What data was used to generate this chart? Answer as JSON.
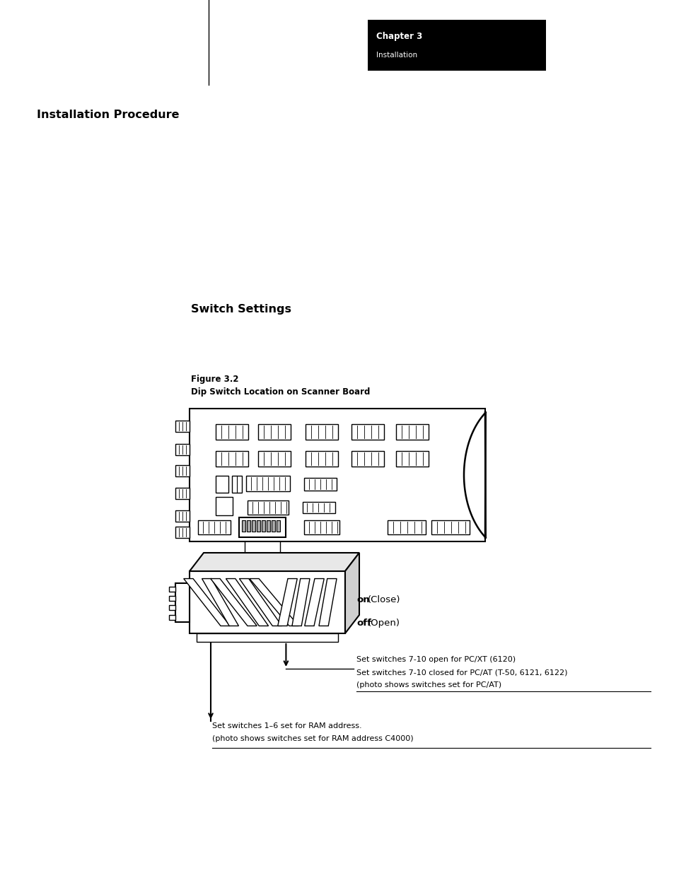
{
  "page_bg": "#ffffff",
  "chapter_box_color": "#000000",
  "chapter_title": "Chapter 3",
  "chapter_sub": "Installation",
  "section_title": "Installation Procedure",
  "subsection_title": "Switch Settings",
  "fig_label_line1": "Figure 3.2",
  "fig_label_line2": "Dip Switch Location on Scanner Board",
  "on_label": "on",
  "on_paren": "  (Close)",
  "off_label": "off",
  "off_paren": "  (Open)",
  "note_line1": "Set switches 7-10 open for PC/XT (6120)",
  "note_line2": "Set switches 7-10 closed for PC/AT (T-50, 6121, 6122)",
  "note_line3": "(photo shows switches set for PC/AT)",
  "note2_line1": "Set switches 1–6 set for RAM address.",
  "note2_line2": "(photo shows switches set for RAM address C4000)"
}
